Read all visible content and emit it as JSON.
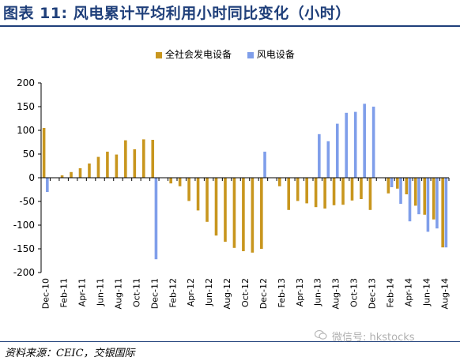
{
  "title": "图表 11: 风电累计平均利用小时同比变化（小时）",
  "source": "资料来源：CEIC，交银国际",
  "watermark": "微信号: hkstocks",
  "colors": {
    "national": "#C8961E",
    "wind": "#7F9EEA",
    "title": "#1F3F7A"
  },
  "chart_data": {
    "type": "bar",
    "title": "",
    "xlabel": "",
    "ylabel": "",
    "ylim": [
      -200,
      200
    ],
    "yticks": [
      200,
      150,
      100,
      50,
      0,
      -50,
      -100,
      -150,
      -200
    ],
    "legend_position": "top-center",
    "grid": false,
    "categories": [
      "Dec-10",
      "Jan-11",
      "Feb-11",
      "Mar-11",
      "Apr-11",
      "May-11",
      "Jun-11",
      "Jul-11",
      "Aug-11",
      "Sep-11",
      "Oct-11",
      "Nov-11",
      "Dec-11",
      "Jan-12",
      "Feb-12",
      "Mar-12",
      "Apr-12",
      "May-12",
      "Jun-12",
      "Jul-12",
      "Aug-12",
      "Sep-12",
      "Oct-12",
      "Nov-12",
      "Dec-12",
      "Jan-13",
      "Feb-13",
      "Mar-13",
      "Apr-13",
      "May-13",
      "Jun-13",
      "Jul-13",
      "Aug-13",
      "Sep-13",
      "Oct-13",
      "Nov-13",
      "Dec-13",
      "Jan-14",
      "Feb-14",
      "Mar-14",
      "Apr-14",
      "May-14",
      "Jun-14",
      "Jul-14",
      "Aug-14"
    ],
    "tick_labels": [
      "Dec-10",
      "",
      "Feb-11",
      "",
      "Apr-11",
      "",
      "Jun-11",
      "",
      "Aug-11",
      "",
      "Oct-11",
      "",
      "Dec-11",
      "",
      "Feb-12",
      "",
      "Apr-12",
      "",
      "Jun-12",
      "",
      "Aug-12",
      "",
      "Oct-12",
      "",
      "Dec-12",
      "",
      "Feb-13",
      "",
      "Apr-13",
      "",
      "Jun-13",
      "",
      "Aug-13",
      "",
      "Oct-13",
      "",
      "Dec-13",
      "",
      "Feb-14",
      "",
      "Apr-14",
      "",
      "Jun-14",
      "",
      "Aug-14"
    ],
    "series": [
      {
        "name": "全社会发电设备",
        "color": "#C8961E",
        "values": [
          105,
          0,
          5,
          12,
          20,
          30,
          44,
          55,
          49,
          79,
          60,
          81,
          80,
          0,
          -12,
          -18,
          -49,
          -69,
          -93,
          -122,
          -135,
          -148,
          -155,
          -158,
          -150,
          0,
          -18,
          -68,
          -49,
          -54,
          -62,
          -65,
          -58,
          -57,
          -48,
          -45,
          -68,
          0,
          -33,
          -23,
          -35,
          -59,
          -78,
          -88,
          -147
        ]
      },
      {
        "name": "风电设备",
        "color": "#7F9EEA",
        "values": [
          -30,
          0,
          0,
          0,
          0,
          0,
          0,
          0,
          0,
          0,
          0,
          0,
          -172,
          0,
          0,
          0,
          0,
          0,
          0,
          0,
          0,
          0,
          0,
          0,
          55,
          0,
          0,
          0,
          0,
          0,
          92,
          77,
          114,
          137,
          139,
          156,
          150,
          0,
          -20,
          -55,
          -92,
          -77,
          -114,
          -107,
          -147
        ]
      }
    ]
  }
}
